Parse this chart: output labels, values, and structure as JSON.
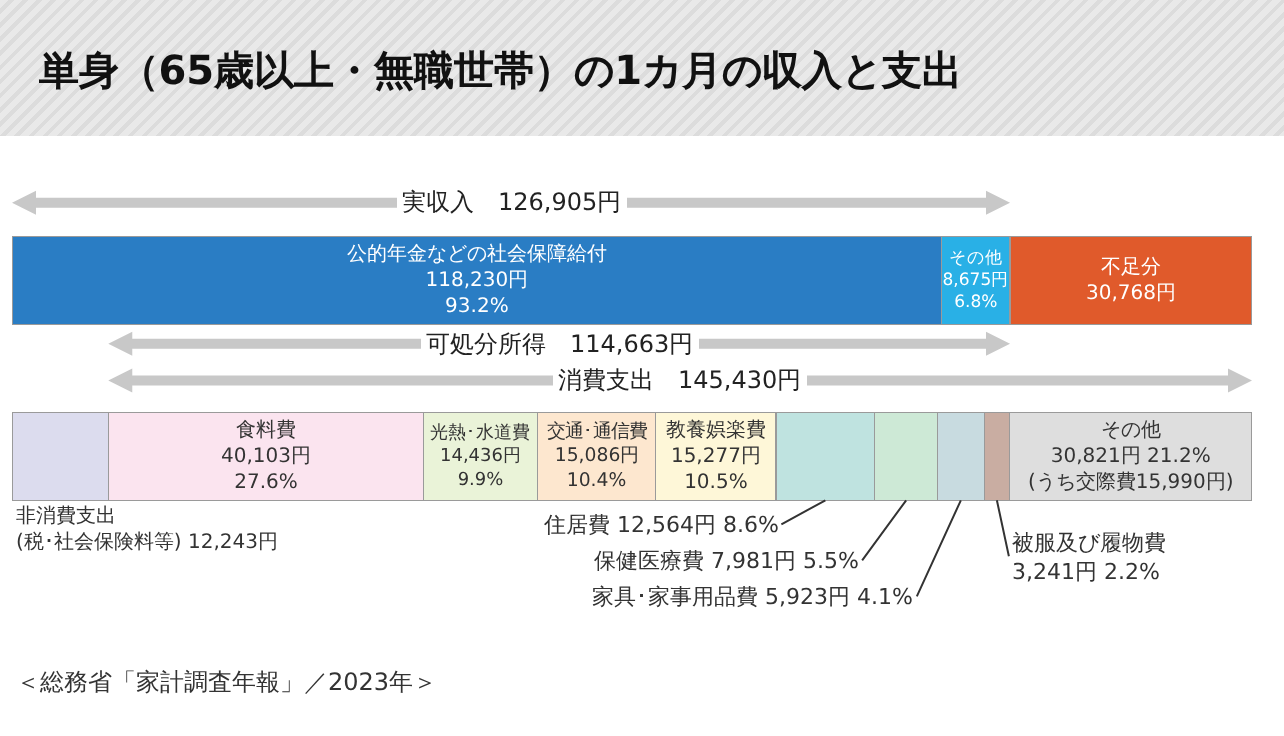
{
  "chart_data": {
    "type": "bar",
    "orientation": "horizontal",
    "stacked": true,
    "legend": false,
    "title": "単身（65歳以上・無職世帯）の1カ月の収入と支出",
    "categories": [
      null,
      null
    ],
    "series": [
      {
        "name": "公的年金などの社会保障給付",
        "color": "#2a7dc4",
        "values": [
          118230,
          null
        ],
        "value_labels": [
          "118,230円\n93.2%",
          null
        ]
      },
      {
        "name": "その他",
        "color": "#29b0e6",
        "values": [
          8675,
          null
        ],
        "value_labels": [
          "8,675円\n6.8%",
          null
        ]
      },
      {
        "name": "不足分",
        "color": "#e05a2b",
        "values": [
          30768,
          null
        ],
        "value_labels": [
          "30,768円",
          null
        ]
      },
      {
        "name": "非消費支出\n(税･社会保険料等)",
        "color": "#dcdcee",
        "values": [
          null,
          12243
        ],
        "value_labels": [
          null,
          "12,243円"
        ]
      },
      {
        "name": "食料費",
        "color": "#fbe4ef",
        "values": [
          null,
          40103
        ],
        "value_labels": [
          null,
          "40,103円\n27.6%"
        ]
      },
      {
        "name": "光熱･水道費",
        "color": "#eaf3d8",
        "values": [
          null,
          14436
        ],
        "value_labels": [
          null,
          "14,436円\n9.9%"
        ]
      },
      {
        "name": "交通･通信費",
        "color": "#fde7cf",
        "values": [
          null,
          15086
        ],
        "value_labels": [
          null,
          "15,086円\n10.4%"
        ]
      },
      {
        "name": "教養娯楽費",
        "color": "#fef7d8",
        "values": [
          null,
          15277
        ],
        "value_labels": [
          null,
          "15,277円\n10.5%"
        ]
      },
      {
        "name": "住居費",
        "color": "#bfe3e0",
        "values": [
          null,
          12564
        ],
        "value_labels": [
          null,
          "12,564円 8.6%"
        ]
      },
      {
        "name": "保健医療費",
        "color": "#cde9d6",
        "values": [
          null,
          7981
        ],
        "value_labels": [
          null,
          "7,981円 5.5%"
        ]
      },
      {
        "name": "家具･家事用品費",
        "color": "#c8dbe0",
        "values": [
          null,
          5923
        ],
        "value_labels": [
          null,
          "5,923円 4.1%"
        ]
      },
      {
        "name": "被服及び履物費",
        "color": "#c9ada2",
        "values": [
          null,
          3241
        ],
        "value_labels": [
          null,
          "3,241円 2.2%"
        ]
      },
      {
        "name": "その他",
        "color": "#dedede",
        "values": [
          null,
          30821
        ],
        "value_labels": [
          null,
          "30,821円 21.2%\n(うち交際費15,990円)"
        ]
      }
    ],
    "annotations": [
      "実収入　126,905円",
      "可処分所得　114,663円",
      "消費支出　145,430円",
      "＜総務省「家計調査年報」／2023年＞"
    ]
  }
}
